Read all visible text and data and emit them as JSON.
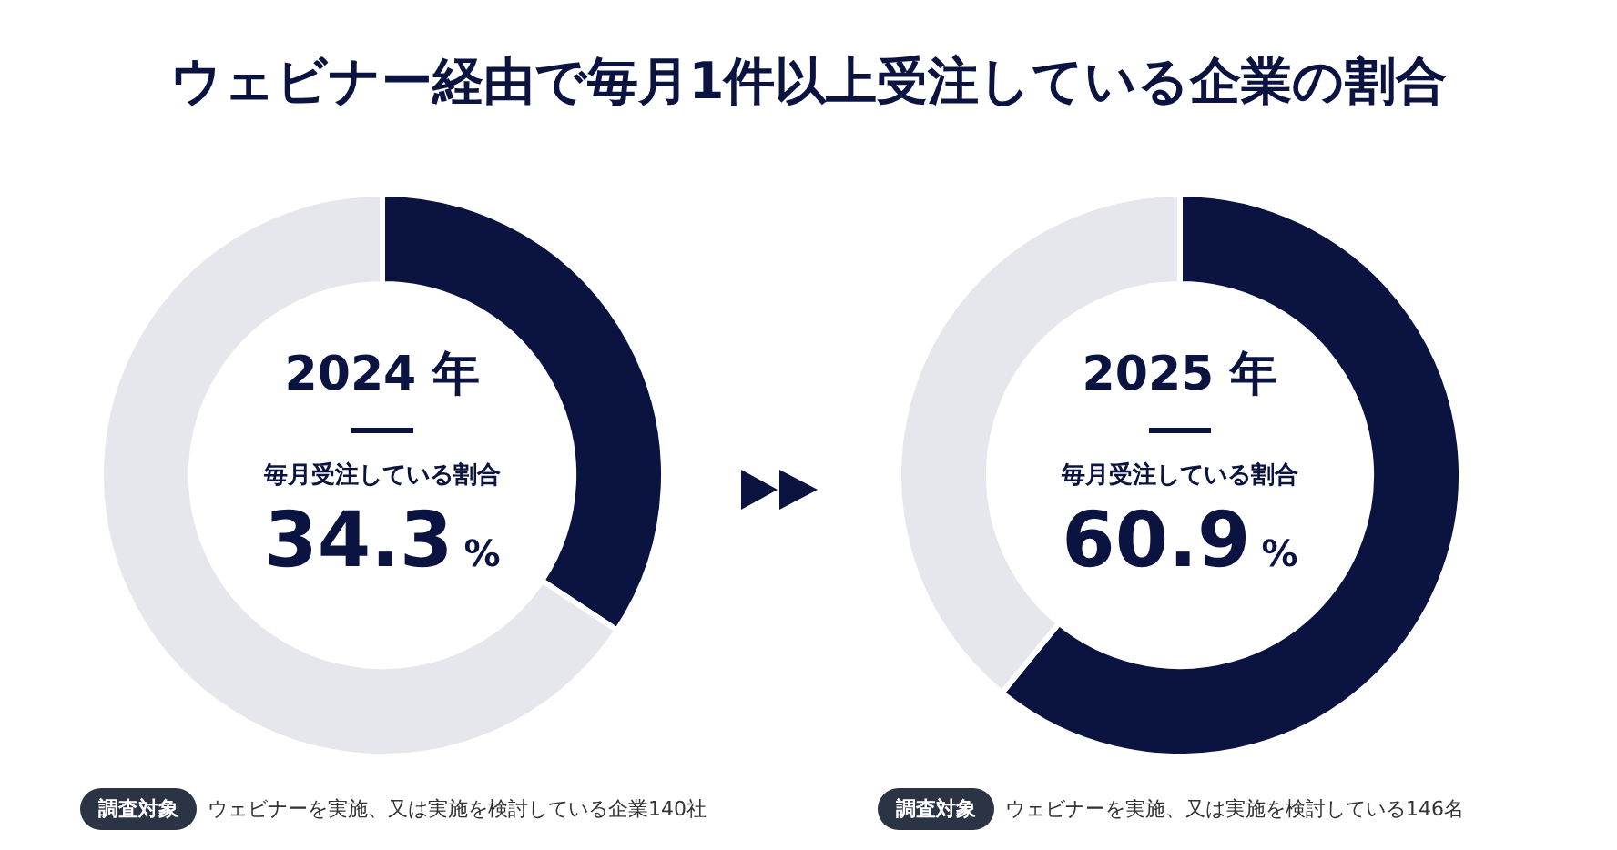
{
  "chart_data": [
    {
      "type": "donut",
      "title": "ウェビナー経由で毎月1件以上受注している企業の割合",
      "subtitle": "2024 年",
      "categories": [
        null,
        null
      ],
      "values": [
        34.3,
        65.7
      ],
      "colors": [
        "#0b1440",
        "#e6e7ec"
      ],
      "legend": false,
      "annotations": [
        "毎月受注している割合",
        "34.3%",
        "調査対象",
        "ウェビナーを実施、又は実施を検討している企業140社"
      ]
    },
    {
      "type": "donut",
      "subtitle": "2025 年",
      "categories": [
        null,
        null
      ],
      "values": [
        60.9,
        39.1
      ],
      "colors": [
        "#0b1440",
        "#e6e7ec"
      ],
      "legend": false,
      "annotations": [
        "毎月受注している割合",
        "60.9%",
        "調査対象",
        "ウェビナーを実施、又は実施を検討している146名"
      ]
    }
  ]
}
